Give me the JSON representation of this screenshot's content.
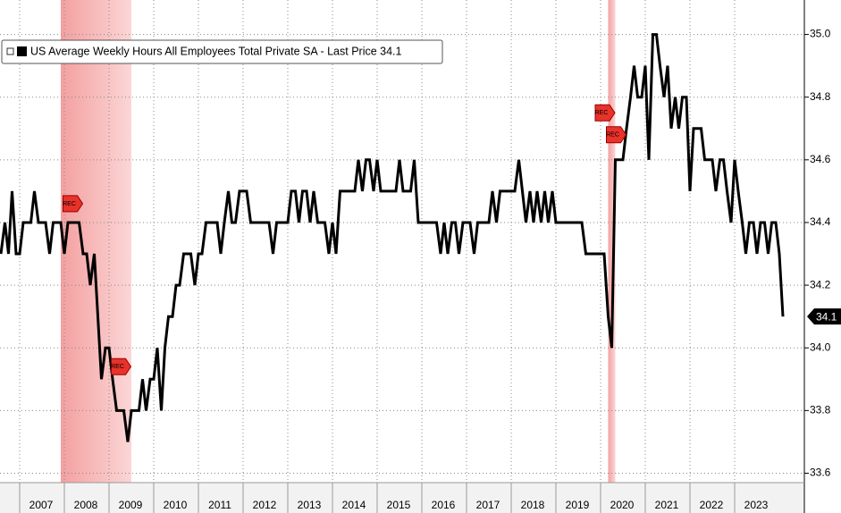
{
  "chart_data": {
    "type": "line",
    "series": [
      {
        "name": "US Average Weekly Hours All Employees Total Private SA - Last Price 34.1",
        "color": "#000000",
        "x": [
          2006.58,
          2006.67,
          2006.75,
          2006.83,
          2006.92,
          2007.0,
          2007.08,
          2007.17,
          2007.25,
          2007.33,
          2007.42,
          2007.5,
          2007.58,
          2007.67,
          2007.75,
          2007.83,
          2007.92,
          2008.0,
          2008.08,
          2008.17,
          2008.25,
          2008.33,
          2008.42,
          2008.5,
          2008.58,
          2008.67,
          2008.75,
          2008.83,
          2008.92,
          2009.0,
          2009.08,
          2009.17,
          2009.25,
          2009.33,
          2009.42,
          2009.5,
          2009.58,
          2009.67,
          2009.75,
          2009.83,
          2009.92,
          2010.0,
          2010.08,
          2010.17,
          2010.25,
          2010.33,
          2010.42,
          2010.5,
          2010.58,
          2010.67,
          2010.75,
          2010.83,
          2010.92,
          2011.0,
          2011.08,
          2011.17,
          2011.25,
          2011.33,
          2011.42,
          2011.5,
          2011.58,
          2011.67,
          2011.75,
          2011.83,
          2011.92,
          2012.0,
          2012.08,
          2012.17,
          2012.25,
          2012.33,
          2012.42,
          2012.5,
          2012.58,
          2012.67,
          2012.75,
          2012.83,
          2012.92,
          2013.0,
          2013.08,
          2013.17,
          2013.25,
          2013.33,
          2013.42,
          2013.5,
          2013.58,
          2013.67,
          2013.75,
          2013.83,
          2013.92,
          2014.0,
          2014.08,
          2014.17,
          2014.25,
          2014.33,
          2014.42,
          2014.5,
          2014.58,
          2014.67,
          2014.75,
          2014.83,
          2014.92,
          2015.0,
          2015.08,
          2015.17,
          2015.25,
          2015.33,
          2015.42,
          2015.5,
          2015.58,
          2015.67,
          2015.75,
          2015.83,
          2015.92,
          2016.0,
          2016.08,
          2016.17,
          2016.25,
          2016.33,
          2016.42,
          2016.5,
          2016.58,
          2016.67,
          2016.75,
          2016.83,
          2016.92,
          2017.0,
          2017.08,
          2017.17,
          2017.25,
          2017.33,
          2017.42,
          2017.5,
          2017.58,
          2017.67,
          2017.75,
          2017.83,
          2017.92,
          2018.0,
          2018.08,
          2018.17,
          2018.25,
          2018.33,
          2018.42,
          2018.5,
          2018.58,
          2018.67,
          2018.75,
          2018.83,
          2018.92,
          2019.0,
          2019.08,
          2019.17,
          2019.25,
          2019.33,
          2019.42,
          2019.5,
          2019.58,
          2019.67,
          2019.75,
          2019.83,
          2019.92,
          2020.0,
          2020.08,
          2020.17,
          2020.25,
          2020.33,
          2020.42,
          2020.5,
          2020.58,
          2020.67,
          2020.75,
          2020.83,
          2020.92,
          2021.0,
          2021.08,
          2021.17,
          2021.25,
          2021.33,
          2021.42,
          2021.5,
          2021.58,
          2021.67,
          2021.75,
          2021.83,
          2021.92,
          2022.0,
          2022.08,
          2022.17,
          2022.25,
          2022.33,
          2022.42,
          2022.5,
          2022.58,
          2022.67,
          2022.75,
          2022.83,
          2022.92,
          2023.0,
          2023.08,
          2023.17,
          2023.25,
          2023.33,
          2023.42,
          2023.5,
          2023.58,
          2023.67,
          2023.75,
          2023.83,
          2023.92,
          2024.0,
          2024.08
        ],
        "values": [
          34.3,
          34.4,
          34.3,
          34.5,
          34.3,
          34.3,
          34.4,
          34.4,
          34.4,
          34.5,
          34.4,
          34.4,
          34.4,
          34.3,
          34.4,
          34.4,
          34.4,
          34.3,
          34.4,
          34.4,
          34.4,
          34.4,
          34.3,
          34.3,
          34.2,
          34.3,
          34.1,
          33.9,
          34.0,
          34.0,
          33.9,
          33.8,
          33.8,
          33.8,
          33.7,
          33.8,
          33.8,
          33.8,
          33.9,
          33.8,
          33.9,
          33.9,
          34.0,
          33.8,
          34.0,
          34.1,
          34.1,
          34.2,
          34.2,
          34.3,
          34.3,
          34.3,
          34.2,
          34.3,
          34.3,
          34.4,
          34.4,
          34.4,
          34.4,
          34.3,
          34.4,
          34.5,
          34.4,
          34.4,
          34.5,
          34.5,
          34.5,
          34.4,
          34.4,
          34.4,
          34.4,
          34.4,
          34.4,
          34.3,
          34.4,
          34.4,
          34.4,
          34.4,
          34.5,
          34.5,
          34.4,
          34.5,
          34.5,
          34.4,
          34.5,
          34.4,
          34.4,
          34.4,
          34.3,
          34.4,
          34.3,
          34.5,
          34.5,
          34.5,
          34.5,
          34.5,
          34.6,
          34.5,
          34.6,
          34.6,
          34.5,
          34.6,
          34.5,
          34.5,
          34.5,
          34.5,
          34.5,
          34.6,
          34.5,
          34.5,
          34.5,
          34.6,
          34.4,
          34.4,
          34.4,
          34.4,
          34.4,
          34.4,
          34.3,
          34.4,
          34.3,
          34.4,
          34.4,
          34.3,
          34.4,
          34.4,
          34.4,
          34.3,
          34.4,
          34.4,
          34.4,
          34.4,
          34.5,
          34.4,
          34.5,
          34.5,
          34.5,
          34.5,
          34.5,
          34.6,
          34.5,
          34.4,
          34.5,
          34.4,
          34.5,
          34.4,
          34.5,
          34.4,
          34.5,
          34.4,
          34.4,
          34.4,
          34.4,
          34.4,
          34.4,
          34.4,
          34.4,
          34.3,
          34.3,
          34.3,
          34.3,
          34.3,
          34.3,
          34.1,
          34.0,
          34.6,
          34.6,
          34.6,
          34.7,
          34.8,
          34.9,
          34.8,
          34.8,
          34.9,
          34.6,
          35.0,
          35.0,
          34.9,
          34.8,
          34.9,
          34.7,
          34.8,
          34.7,
          34.8,
          34.8,
          34.5,
          34.7,
          34.7,
          34.7,
          34.6,
          34.6,
          34.6,
          34.5,
          34.6,
          34.6,
          34.5,
          34.4,
          34.6,
          34.5,
          34.4,
          34.3,
          34.4,
          34.4,
          34.3,
          34.4,
          34.4,
          34.3,
          34.4,
          34.4,
          34.3,
          34.1
        ]
      }
    ],
    "last_price": 34.1,
    "recessions": [
      {
        "start": 2007.92,
        "end": 2009.5
      },
      {
        "start": 2020.17,
        "end": 2020.33
      }
    ],
    "annotations": [
      {
        "label": "REC",
        "x": 2008.17,
        "y": 34.46
      },
      {
        "label": "REC",
        "x": 2009.25,
        "y": 33.94
      },
      {
        "label": "REC",
        "x": 2020.08,
        "y": 34.75
      },
      {
        "label": "REC",
        "x": 2020.33,
        "y": 34.68
      }
    ],
    "xlim": [
      2006.56,
      2024.56
    ],
    "ylim": [
      33.57,
      35.11
    ],
    "xticks": [
      {
        "value": 2007,
        "label": "2007"
      },
      {
        "value": 2008,
        "label": "2008"
      },
      {
        "value": 2009,
        "label": "2009"
      },
      {
        "value": 2010,
        "label": "2010"
      },
      {
        "value": 2011,
        "label": "2011"
      },
      {
        "value": 2012,
        "label": "2012"
      },
      {
        "value": 2013,
        "label": "2013"
      },
      {
        "value": 2014,
        "label": "2014"
      },
      {
        "value": 2015,
        "label": "2015"
      },
      {
        "value": 2016,
        "label": "2016"
      },
      {
        "value": 2017,
        "label": "2017"
      },
      {
        "value": 2018,
        "label": "2018"
      },
      {
        "value": 2019,
        "label": "2019"
      },
      {
        "value": 2020,
        "label": "2020"
      },
      {
        "value": 2021,
        "label": "2021"
      },
      {
        "value": 2022,
        "label": "2022"
      },
      {
        "value": 2023,
        "label": "2023"
      }
    ],
    "yticks": [
      33.6,
      33.8,
      {
        "value": 34,
        "label": "34.0"
      },
      34.2,
      34.4,
      34.6,
      34.8,
      {
        "value": 35,
        "label": "35.0"
      }
    ],
    "grid": true
  }
}
